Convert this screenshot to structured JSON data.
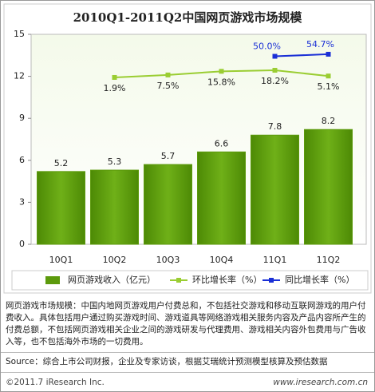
{
  "chart_data": {
    "type": "bar",
    "title": "2010Q1-2011Q2中国网页游戏市场规模",
    "categories": [
      "10Q1",
      "10Q2",
      "10Q3",
      "10Q4",
      "11Q1",
      "11Q2"
    ],
    "series": [
      {
        "name": "网页游戏收入（亿元）",
        "type": "bar",
        "color": "#5c9a0c",
        "values": [
          5.2,
          5.3,
          5.7,
          6.6,
          7.8,
          8.2
        ]
      },
      {
        "name": "环比增长率（%）",
        "type": "line",
        "axis": "y2",
        "color": "#9acd32",
        "values": [
          null,
          1.9,
          7.5,
          15.8,
          18.2,
          5.1
        ],
        "value_labels": [
          null,
          "1.9%",
          "7.5%",
          "15.8%",
          "18.2%",
          "5.1%"
        ]
      },
      {
        "name": "同比增长率（%）",
        "type": "line",
        "axis": "y2",
        "color": "#1a2fd6",
        "values": [
          null,
          null,
          null,
          null,
          50.0,
          54.7
        ],
        "value_labels": [
          null,
          null,
          null,
          null,
          "50.0%",
          "54.7%"
        ]
      }
    ],
    "ylim": [
      0,
      15
    ],
    "yticks": [
      0,
      3,
      6,
      9,
      12,
      15
    ],
    "y2lim": [
      -378,
      100
    ],
    "grid": false
  },
  "footer": {
    "note": "网页游戏市场规模：中国内地网页游戏用户付费总和，不包括社交游戏和移动互联网游戏的用户付费收入。具体包括用户通过购买游戏时间、游戏道具等网络游戏相关服务内容及产品内容所产生的付费总额，不包括网页游戏相关企业之间的游戏研发与代理费用、游戏相关内容外包费用与广告收入等，也不包括海外市场的一切费用。",
    "source": "Source：综合上市公司财报，企业及专家访谈，根据艾瑞统计预测模型核算及预估数据",
    "copyright": "©2011.7 iResearch Inc.",
    "website": "www.iresearch.com.cn"
  }
}
